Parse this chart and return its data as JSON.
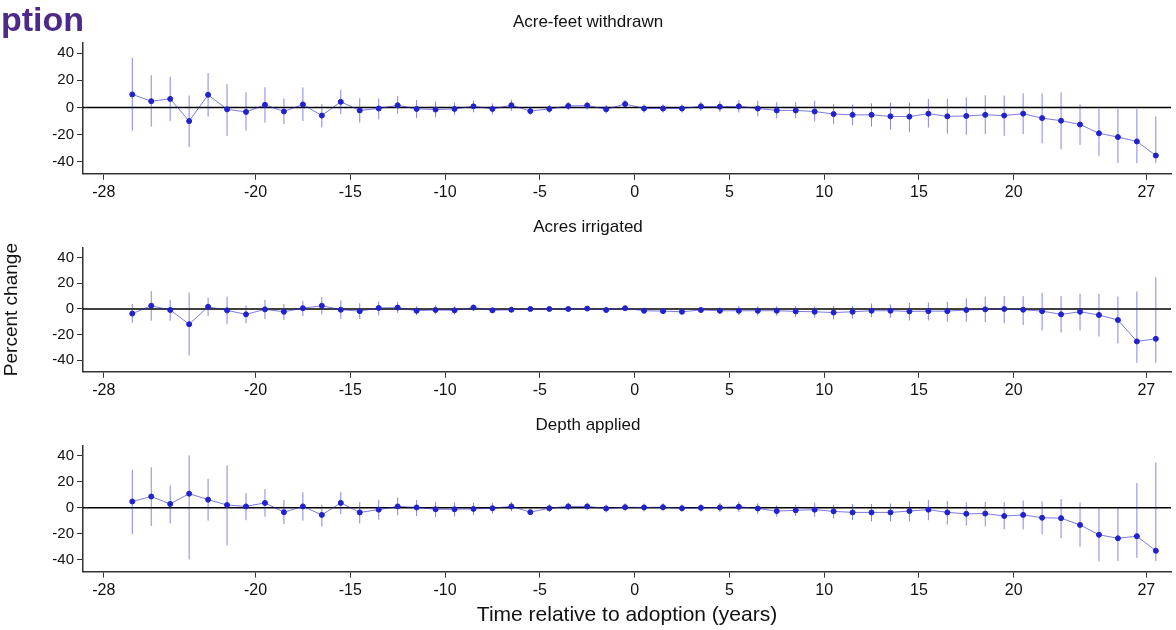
{
  "chart_data": [
    {
      "type": "line",
      "title": "Acre-feet withdrawn",
      "annotations": [
        "ption"
      ],
      "color": "#2222cc",
      "marker": "circle",
      "x": [
        -26.5,
        -25.5,
        -24.5,
        -23.5,
        -22.5,
        -21.5,
        -20.5,
        -19.5,
        -18.5,
        -17.5,
        -16.5,
        -15.5,
        -14.5,
        -13.5,
        -12.5,
        -11.5,
        -10.5,
        -9.5,
        -8.5,
        -7.5,
        -6.5,
        -5.5,
        -4.5,
        -3.5,
        -2.5,
        -1.5,
        -0.5,
        0.5,
        1.5,
        2.5,
        3.5,
        4.5,
        5.5,
        6.5,
        7.5,
        8.5,
        9.5,
        10.5,
        11.5,
        12.5,
        13.5,
        14.5,
        15.5,
        16.5,
        17.5,
        18.5,
        19.5,
        20.5,
        21.5,
        22.5,
        23.5,
        24.5,
        25.5,
        26.5,
        27.5
      ],
      "values": [
        9.6,
        4.6,
        6.3,
        -10.1,
        9.3,
        -1.4,
        -3.3,
        1.9,
        -3,
        2.2,
        -6,
        4.1,
        -2.2,
        -0.8,
        1.6,
        -1.1,
        -1.6,
        -1.1,
        0.8,
        -1.1,
        1.6,
        -2.7,
        -1.1,
        1.1,
        1.4,
        -1.4,
        2.5,
        -0.8,
        -0.8,
        -0.8,
        0.8,
        0.5,
        0.8,
        -0.8,
        -2.2,
        -2.2,
        -3,
        -4.9,
        -5.5,
        -5.5,
        -6.6,
        -6.8,
        -4.6,
        -6.6,
        -6.3,
        -5.5,
        -6,
        -4.6,
        -7.9,
        -9.8,
        -12.6,
        -19.1,
        -21.9,
        -25.1,
        -35.5
      ],
      "errors": [
        [
          -17.2,
          36.6
        ],
        [
          -14.2,
          23.8
        ],
        [
          -10.1,
          22.7
        ],
        [
          -29.2,
          8.7
        ],
        [
          -6.8,
          25.4
        ],
        [
          -21,
          17.2
        ],
        [
          -17.2,
          11.2
        ],
        [
          -11.2,
          14.8
        ],
        [
          -12.3,
          6.6
        ],
        [
          -10.1,
          14.8
        ],
        [
          -14.8,
          2.5
        ],
        [
          -4.9,
          13.1
        ],
        [
          -11.2,
          6.8
        ],
        [
          -8.7,
          6.3
        ],
        [
          -4.6,
          8.5
        ],
        [
          -7.9,
          5.5
        ],
        [
          -7.4,
          4.4
        ],
        [
          -5.5,
          3.6
        ],
        [
          -3.6,
          5.2
        ],
        [
          -5.2,
          3
        ],
        [
          -2.5,
          5.7
        ],
        [
          -5.5,
          0.3
        ],
        [
          -4.1,
          1.9
        ],
        [
          -1.9,
          4.1
        ],
        [
          -1.6,
          4.4
        ],
        [
          -4.4,
          1.6
        ],
        [
          -0.5,
          5.5
        ],
        [
          -3.8,
          2.2
        ],
        [
          -3.8,
          2.2
        ],
        [
          -3.8,
          2.2
        ],
        [
          -2.7,
          4.3
        ],
        [
          -3.5,
          4.5
        ],
        [
          -3.7,
          5.3
        ],
        [
          -6.6,
          4.9
        ],
        [
          -8.2,
          3.8
        ],
        [
          -7.9,
          3.8
        ],
        [
          -10.1,
          4.9
        ],
        [
          -12.3,
          2.5
        ],
        [
          -13.1,
          2.2
        ],
        [
          -14.2,
          3
        ],
        [
          -16.4,
          3.6
        ],
        [
          -18.3,
          3.6
        ],
        [
          -14.8,
          6.3
        ],
        [
          -19.4,
          6.3
        ],
        [
          -20.2,
          7.4
        ],
        [
          -19.7,
          9
        ],
        [
          -21,
          8.7
        ],
        [
          -19.7,
          10.4
        ],
        [
          -26.5,
          10.4
        ],
        [
          -30.9,
          11.2
        ],
        [
          -27.6,
          2.2
        ],
        [
          -36,
          -1.1
        ],
        [
          -41,
          -1.1
        ],
        [
          -41,
          -1.1
        ],
        [
          -41,
          -6.6
        ]
      ],
      "xlim": [
        -29.1,
        28.3
      ],
      "xticks": [
        -28,
        -20,
        -15,
        -10,
        -5,
        0,
        5,
        10,
        15,
        20,
        27
      ],
      "ylim": [
        -49,
        48
      ],
      "yticks": [
        -40,
        -20,
        0,
        20,
        40
      ],
      "ref_lines": [
        {
          "axis": "y",
          "value": 0,
          "color": "#000000"
        }
      ]
    },
    {
      "type": "line",
      "title": "Acres irrigated",
      "ylabel": "Percent change",
      "color": "#2222cc",
      "marker": "circle",
      "x": [
        -26.5,
        -25.5,
        -24.5,
        -23.5,
        -22.5,
        -21.5,
        -20.5,
        -19.5,
        -18.5,
        -17.5,
        -16.5,
        -15.5,
        -14.5,
        -13.5,
        -12.5,
        -11.5,
        -10.5,
        -9.5,
        -8.5,
        -7.5,
        -6.5,
        -5.5,
        -4.5,
        -3.5,
        -2.5,
        -1.5,
        -0.5,
        0.5,
        1.5,
        2.5,
        3.5,
        4.5,
        5.5,
        6.5,
        7.5,
        8.5,
        9.5,
        10.5,
        11.5,
        12.5,
        13.5,
        14.5,
        15.5,
        16.5,
        17.5,
        18.5,
        19.5,
        20.5,
        21.5,
        22.5,
        23.5,
        24.5,
        25.5,
        26.5,
        27.5
      ],
      "values": [
        -3.6,
        2.5,
        -0.8,
        -11.9,
        1.7,
        -1.1,
        -4.2,
        -0.3,
        -2.2,
        0.6,
        2.5,
        -0.6,
        -1.7,
        0.8,
        1.1,
        -1.4,
        -0.8,
        -1.1,
        1.1,
        -1.1,
        -0.6,
        0,
        0,
        0,
        0.3,
        -0.8,
        0.6,
        -1.4,
        -1.7,
        -2.2,
        -0.8,
        -1.4,
        -1.4,
        -1.4,
        -1.4,
        -1.9,
        -2.2,
        -2.8,
        -2.2,
        -1.4,
        -1.4,
        -1.9,
        -1.7,
        -1.7,
        -0.8,
        -0.3,
        0,
        -0.6,
        -1.7,
        -4.2,
        -2.2,
        -4.7,
        -8.6,
        -25.3,
        -23.3
      ],
      "errors": [
        [
          -10.8,
          3.9
        ],
        [
          -9.2,
          13.9
        ],
        [
          -9.2,
          7.2
        ],
        [
          -36.4,
          12.8
        ],
        [
          -5.6,
          8.9
        ],
        [
          -11.9,
          9.4
        ],
        [
          -11.1,
          2.8
        ],
        [
          -7.8,
          7.2
        ],
        [
          -8.6,
          3.9
        ],
        [
          -5.6,
          6.1
        ],
        [
          -4.4,
          9.4
        ],
        [
          -7.8,
          6.7
        ],
        [
          -7.8,
          4.4
        ],
        [
          -5,
          5.8
        ],
        [
          -3.1,
          5.6
        ],
        [
          -5,
          2.2
        ],
        [
          -4.3,
          2.7
        ],
        [
          -4.1,
          1.9
        ],
        [
          -1.4,
          3.6
        ],
        [
          -3.1,
          0.9
        ],
        [
          -2.6,
          1.4
        ],
        [
          -1.5,
          1.5
        ],
        [
          -1.5,
          1.5
        ],
        [
          -1.5,
          1.5
        ],
        [
          -1.2,
          1.8
        ],
        [
          -2.3,
          0.7
        ],
        [
          -0.9,
          2.1
        ],
        [
          -3.4,
          0.6
        ],
        [
          -3.7,
          0.3
        ],
        [
          -4.2,
          -0.2
        ],
        [
          -2.8,
          1.2
        ],
        [
          -3.9,
          1.1
        ],
        [
          -4.7,
          2.2
        ],
        [
          -5.3,
          2.2
        ],
        [
          -5.3,
          2.2
        ],
        [
          -6.4,
          2.2
        ],
        [
          -6.9,
          1.9
        ],
        [
          -8.1,
          2.2
        ],
        [
          -7.5,
          2.2
        ],
        [
          -6.4,
          4.2
        ],
        [
          -6.9,
          3.6
        ],
        [
          -8.9,
          4.7
        ],
        [
          -8.9,
          5
        ],
        [
          -10,
          5.6
        ],
        [
          -10,
          8.3
        ],
        [
          -10.3,
          9.7
        ],
        [
          -11.1,
          10
        ],
        [
          -12.5,
          10
        ],
        [
          -16.7,
          12.5
        ],
        [
          -18.3,
          10
        ],
        [
          -16.7,
          11.9
        ],
        [
          -21.4,
          11.9
        ],
        [
          -26.9,
          9.7
        ],
        [
          -42,
          13.6
        ],
        [
          -42,
          24.7
        ]
      ],
      "xlim": [
        -29.1,
        28.3
      ],
      "xticks": [
        -28,
        -20,
        -15,
        -10,
        -5,
        0,
        5,
        10,
        15,
        20,
        27
      ],
      "ylim": [
        -49,
        48
      ],
      "yticks": [
        -40,
        -20,
        0,
        20,
        40
      ],
      "ref_lines": [
        {
          "axis": "y",
          "value": 0,
          "color": "#000000"
        }
      ]
    },
    {
      "type": "line",
      "title": "Depth applied",
      "xlabel": "Time relative to adoption (years)",
      "color": "#2222cc",
      "marker": "circle",
      "x": [
        -26.5,
        -25.5,
        -24.5,
        -23.5,
        -22.5,
        -21.5,
        -20.5,
        -19.5,
        -18.5,
        -17.5,
        -16.5,
        -15.5,
        -14.5,
        -13.5,
        -12.5,
        -11.5,
        -10.5,
        -9.5,
        -8.5,
        -7.5,
        -6.5,
        -5.5,
        -4.5,
        -3.5,
        -2.5,
        -1.5,
        -0.5,
        0.5,
        1.5,
        2.5,
        3.5,
        4.5,
        5.5,
        6.5,
        7.5,
        8.5,
        9.5,
        10.5,
        11.5,
        12.5,
        13.5,
        14.5,
        15.5,
        16.5,
        17.5,
        18.5,
        19.5,
        20.5,
        21.5,
        22.5,
        23.5,
        24.5,
        25.5,
        26.5,
        27.5
      ],
      "values": [
        4.9,
        8.7,
        3,
        10.9,
        6.3,
        2.2,
        1.1,
        3.8,
        -3.3,
        1.1,
        -5.4,
        3.8,
        -3.5,
        -1.4,
        1.1,
        0.3,
        -1.1,
        -1.1,
        -0.8,
        -0.3,
        1.1,
        -3.3,
        -0.3,
        1.1,
        1.1,
        -0.5,
        0.5,
        0.3,
        0.5,
        -0.3,
        0,
        0.3,
        0.8,
        -0.5,
        -2.5,
        -1.9,
        -1.4,
        -2.7,
        -3.5,
        -3.5,
        -3.5,
        -2.5,
        -1.4,
        -3.5,
        -4.6,
        -4.4,
        -6.3,
        -5.4,
        -7.6,
        -7.9,
        -13.1,
        -20.7,
        -23.4,
        -21.8,
        -33
      ],
      "errors": [
        [
          -20.2,
          29.2
        ],
        [
          -13.9,
          31.1
        ],
        [
          -12,
          17.2
        ],
        [
          -39.5,
          40.3
        ],
        [
          -9.8,
          22.3
        ],
        [
          -28.9,
          32.7
        ],
        [
          -9.5,
          11.4
        ],
        [
          -6.8,
          14.4
        ],
        [
          -12.5,
          6
        ],
        [
          -9.8,
          12
        ],
        [
          -14.4,
          2.5
        ],
        [
          -4.9,
          12.3
        ],
        [
          -12,
          4.4
        ],
        [
          -9,
          6
        ],
        [
          -5.7,
          7.9
        ],
        [
          -6.3,
          6
        ],
        [
          -7.1,
          4.6
        ],
        [
          -6.5,
          4.1
        ],
        [
          -5.7,
          3.8
        ],
        [
          -4.4,
          3.8
        ],
        [
          -2.7,
          4.6
        ],
        [
          -5.2,
          -1.4
        ],
        [
          -3.3,
          2.7
        ],
        [
          -1.9,
          4.1
        ],
        [
          -1.9,
          4.1
        ],
        [
          -3.5,
          2.5
        ],
        [
          -2.5,
          3.5
        ],
        [
          -2.7,
          3.3
        ],
        [
          -2.5,
          3.5
        ],
        [
          -3.3,
          2.7
        ],
        [
          -3,
          3
        ],
        [
          -3.2,
          3.8
        ],
        [
          -3.2,
          4.8
        ],
        [
          -4.5,
          3.5
        ],
        [
          -6.8,
          1.9
        ],
        [
          -6.3,
          2.5
        ],
        [
          -6.8,
          3.8
        ],
        [
          -8.2,
          2.5
        ],
        [
          -9.3,
          3
        ],
        [
          -10.4,
          3
        ],
        [
          -10.4,
          3.3
        ],
        [
          -10.4,
          4.9
        ],
        [
          -9.5,
          6
        ],
        [
          -12.8,
          5.2
        ],
        [
          -13.6,
          4.1
        ],
        [
          -14.4,
          4.6
        ],
        [
          -16.6,
          4.4
        ],
        [
          -16.6,
          5.7
        ],
        [
          -20.4,
          4.9
        ],
        [
          -23.4,
          6.8
        ],
        [
          -29.7,
          4.1
        ],
        [
          -41,
          0.3
        ],
        [
          -41,
          0.3
        ],
        [
          -38.4,
          19.1
        ],
        [
          -41,
          34.9
        ]
      ],
      "xlim": [
        -29.1,
        28.3
      ],
      "xticks": [
        -28,
        -20,
        -15,
        -10,
        -5,
        0,
        5,
        10,
        15,
        20,
        27
      ],
      "ylim": [
        -49,
        48
      ],
      "yticks": [
        -40,
        -20,
        0,
        20,
        40
      ],
      "ref_lines": [
        {
          "axis": "y",
          "value": 0,
          "color": "#000000"
        }
      ]
    }
  ]
}
